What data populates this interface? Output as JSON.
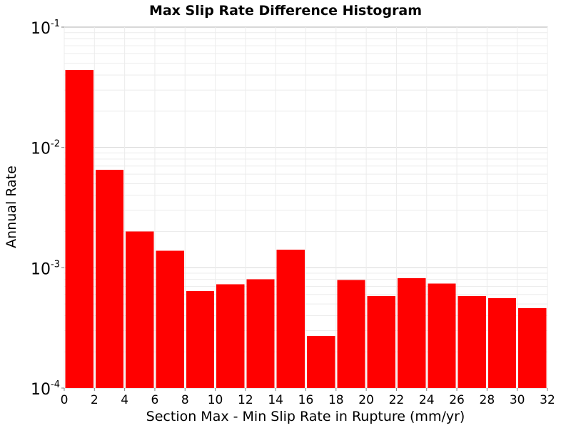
{
  "chart_data": {
    "type": "bar",
    "title": "Max Slip Rate Difference Histogram",
    "xlabel": "Section Max - Min Slip Rate in Rupture (mm/yr)",
    "ylabel": "Annual Rate",
    "xlim": [
      0,
      32
    ],
    "ylim": [
      0.0001,
      0.1
    ],
    "y_scale": "log",
    "grid": true,
    "bar_color": "#ff0000",
    "bar_edges": [
      0,
      2,
      4,
      6,
      8,
      10,
      12,
      14,
      16,
      18,
      20,
      22,
      24,
      26,
      28,
      30,
      32
    ],
    "values": [
      0.044,
      0.0065,
      0.002,
      0.00138,
      0.00064,
      0.00073,
      0.0008,
      0.00141,
      0.00027,
      0.00079,
      0.00058,
      0.00082,
      0.00074,
      0.00058,
      0.00056,
      0.00046
    ],
    "x_ticks": [
      "0",
      "2",
      "4",
      "6",
      "8",
      "10",
      "12",
      "14",
      "16",
      "18",
      "20",
      "22",
      "24",
      "26",
      "28",
      "30",
      "32"
    ],
    "y_ticks": [
      {
        "base": "10",
        "exp": "-4"
      },
      {
        "base": "10",
        "exp": "-3"
      },
      {
        "base": "10",
        "exp": "-2"
      },
      {
        "base": "10",
        "exp": "-1"
      }
    ]
  }
}
